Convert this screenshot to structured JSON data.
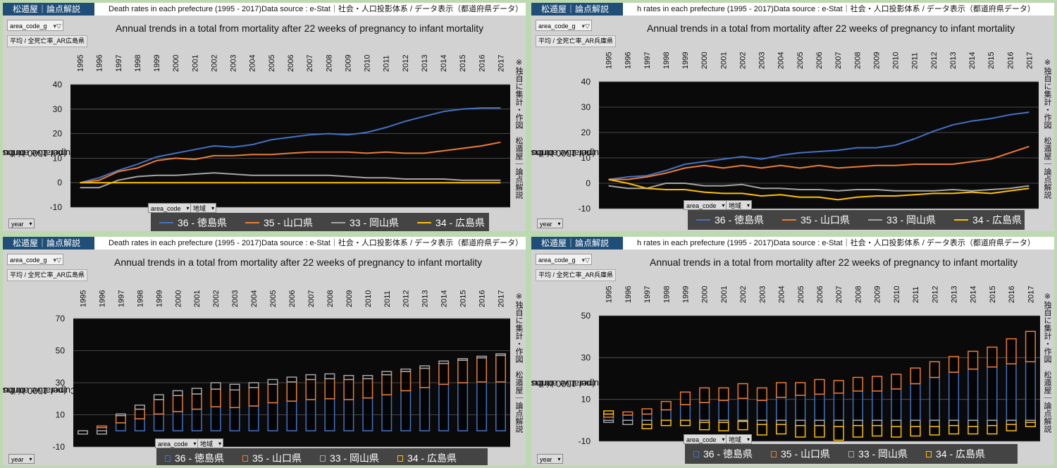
{
  "years": [
    "1995",
    "1996",
    "1997",
    "1998",
    "1999",
    "2000",
    "2001",
    "2002",
    "2003",
    "2004",
    "2005",
    "2006",
    "2007",
    "2008",
    "2009",
    "2010",
    "2011",
    "2012",
    "2013",
    "2014",
    "2015",
    "2016",
    "2017"
  ],
  "common": {
    "brand": "松遁屋｜論点解説",
    "title": "Annual trends in a total from mortality after 22 weeks of pregnancy to infant mortality",
    "ylabel_line1": "Cumulative attributable risk",
    "ylabel_line2": "(per 1000 births)",
    "filter_label": "area_code_g",
    "filter_icon": "funnel-icon",
    "year_button": "year",
    "area_code_button": "area_code",
    "region_button": "地域",
    "vertical_note": "※独自に集計・作図　松遁屋｜論点解説"
  },
  "panels": [
    {
      "source_text": "Death rates in each prefecture (1995 - 2017)Data source : e-Stat｜社会・人口投影体系 / データ表示（都道府県データ）",
      "measure_label": "平均 / 全死亡率_AR広島県",
      "chart_data": {
        "type": "line",
        "ylim": [
          -10,
          40
        ],
        "yticks": [
          -10,
          0,
          10,
          20,
          30,
          40
        ],
        "legend_position": "bottom",
        "grid": true,
        "series": [
          {
            "name": "36 - 徳島県",
            "color": "#4472c4",
            "values": [
              0,
              2,
              5,
              7.5,
              10.5,
              12,
              13.5,
              15,
              14.5,
              15.5,
              17.5,
              18.5,
              19.5,
              20,
              19.5,
              20.5,
              22.5,
              25,
              27,
              29,
              30,
              30.5,
              30.5
            ]
          },
          {
            "name": "35 - 山口県",
            "color": "#ed7d31",
            "values": [
              0,
              1,
              4.5,
              6,
              9,
              10,
              9.5,
              11,
              11,
              11.5,
              11.5,
              12,
              12.5,
              12.5,
              12.5,
              12,
              12.5,
              12,
              12,
              13,
              14,
              15,
              16.5
            ]
          },
          {
            "name": "33 - 岡山県",
            "color": "#a5a5a5",
            "values": [
              -2,
              -2,
              1,
              2.5,
              3,
              3,
              3.5,
              4,
              3.5,
              3,
              3,
              3,
              3,
              3,
              2.5,
              2,
              2,
              1.5,
              1.5,
              1.5,
              1,
              1,
              1
            ]
          },
          {
            "name": "34 - 広島県",
            "color": "#ffc000",
            "values": [
              0,
              0,
              0,
              0,
              0,
              0,
              0,
              0,
              0,
              0,
              0,
              0,
              0,
              0,
              0,
              0,
              0,
              0,
              0,
              0,
              0,
              0,
              0
            ]
          }
        ]
      }
    },
    {
      "source_text": "h rates in each prefecture (1995 - 2017)Data source : e-Stat｜社会・人口投影体系 / データ表示（都道府県データ）",
      "measure_label": "平均 / 全死亡率_AR兵庫県",
      "chart_data": {
        "type": "line",
        "ylim": [
          -10,
          40
        ],
        "yticks": [
          -10,
          0,
          10,
          20,
          30,
          40
        ],
        "legend_position": "bottom",
        "grid": true,
        "series": [
          {
            "name": "36 - 徳島県",
            "color": "#4472c4",
            "values": [
              1.5,
              2.5,
              3,
              5,
              7.5,
              8.5,
              9.5,
              10.5,
              9.5,
              11,
              12,
              12.5,
              13,
              14,
              14,
              15,
              17.5,
              20.5,
              23,
              24.5,
              25.5,
              27,
              28
            ]
          },
          {
            "name": "35 - 山口県",
            "color": "#ed7d31",
            "values": [
              1.5,
              1.5,
              2.5,
              4,
              6,
              7,
              6,
              7,
              6,
              7,
              6,
              7,
              6,
              6.5,
              7,
              7,
              7.5,
              7.5,
              7.5,
              8.5,
              9.5,
              12,
              14.5
            ]
          },
          {
            "name": "33 - 岡山県",
            "color": "#a5a5a5",
            "values": [
              -1,
              -2,
              -2,
              0,
              0,
              -1,
              -1,
              -0.5,
              -2,
              -2,
              -2.5,
              -2.5,
              -3,
              -2.5,
              -2.5,
              -3,
              -3,
              -3,
              -2.5,
              -3,
              -2.5,
              -2,
              -1
            ]
          },
          {
            "name": "34 - 広島県",
            "color": "#ffc000",
            "values": [
              1.5,
              0,
              -2,
              -2.5,
              -2.5,
              -3.5,
              -4,
              -4,
              -5,
              -4.5,
              -5.5,
              -5.5,
              -6.5,
              -5.5,
              -5,
              -5,
              -4.5,
              -4,
              -4,
              -3.5,
              -4,
              -3,
              -2
            ]
          }
        ]
      }
    },
    {
      "source_text": "Death rates in each prefecture (1995 - 2017)Data source : e-Stat｜社会・人口投影体系 / データ表示（都道府県データ）",
      "measure_label": "平均 / 全死亡率_AR広島県",
      "chart_data": {
        "type": "bar",
        "stacked": true,
        "ylim": [
          -10,
          70
        ],
        "yticks": [
          -10,
          10,
          30,
          50,
          70
        ],
        "legend_position": "bottom",
        "grid": true,
        "series": [
          {
            "name": "36 - 徳島県",
            "color": "#4472c4",
            "values": [
              0,
              2,
              5,
              7.5,
              10.5,
              12,
              13.5,
              15,
              14.5,
              15.5,
              17.5,
              18.5,
              19.5,
              20,
              19.5,
              20.5,
              22.5,
              25,
              27,
              29,
              30,
              30.5,
              30.5
            ]
          },
          {
            "name": "35 - 山口県",
            "color": "#ed7d31",
            "values": [
              0,
              1,
              4.5,
              6,
              9,
              10,
              9.5,
              11,
              11,
              11.5,
              11.5,
              12,
              12.5,
              12.5,
              12.5,
              12,
              12.5,
              12,
              12,
              13,
              14,
              15,
              16.5
            ]
          },
          {
            "name": "33 - 岡山県",
            "color": "#a5a5a5",
            "values": [
              -2,
              -2,
              1,
              2.5,
              3,
              3,
              3.5,
              4,
              3.5,
              3,
              3,
              3,
              3,
              3,
              2.5,
              2,
              2,
              1.5,
              1.5,
              1.5,
              1,
              1,
              1
            ]
          },
          {
            "name": "34 - 広島県",
            "color": "#ffc000",
            "values": [
              0,
              0,
              0,
              0,
              0,
              0,
              0,
              0,
              0,
              0,
              0,
              0,
              0,
              0,
              0,
              0,
              0,
              0,
              0,
              0,
              0,
              0,
              0
            ]
          }
        ]
      }
    },
    {
      "source_text": "h rates in each prefecture (1995 - 2017)Data source : e-Stat｜社会・人口投影体系 / データ表示（都道府県データ）",
      "measure_label": "平均 / 全死亡率_AR兵庫県",
      "chart_data": {
        "type": "bar",
        "stacked": true,
        "ylim": [
          -10,
          50
        ],
        "yticks": [
          -10,
          10,
          30,
          50
        ],
        "legend_position": "bottom",
        "grid": true,
        "series": [
          {
            "name": "36 - 徳島県",
            "color": "#4472c4",
            "values": [
              1.5,
              2.5,
              3,
              5,
              7.5,
              8.5,
              9.5,
              10.5,
              9.5,
              11,
              12,
              12.5,
              13,
              14,
              14,
              15,
              17.5,
              20.5,
              23,
              24.5,
              25.5,
              27,
              28
            ]
          },
          {
            "name": "35 - 山口県",
            "color": "#ed7d31",
            "values": [
              1.5,
              1.5,
              2.5,
              4,
              6,
              7,
              6,
              7,
              6,
              7,
              6,
              7,
              6,
              6.5,
              7,
              7,
              7.5,
              7.5,
              7.5,
              8.5,
              9.5,
              12,
              14.5
            ]
          },
          {
            "name": "33 - 岡山県",
            "color": "#a5a5a5",
            "values": [
              -1,
              -2,
              -2,
              0,
              0,
              -1,
              -1,
              -0.5,
              -2,
              -2,
              -2.5,
              -2.5,
              -3,
              -2.5,
              -2.5,
              -3,
              -3,
              -3,
              -2.5,
              -3,
              -2.5,
              -2,
              -1
            ]
          },
          {
            "name": "34 - 広島県",
            "color": "#ffc000",
            "values": [
              1.5,
              0,
              -2,
              -2.5,
              -2.5,
              -3.5,
              -4,
              -4,
              -5,
              -4.5,
              -5.5,
              -5.5,
              -6.5,
              -5.5,
              -5,
              -5,
              -4.5,
              -4,
              -4,
              -3.5,
              -4,
              -3,
              -2
            ]
          }
        ]
      }
    }
  ]
}
